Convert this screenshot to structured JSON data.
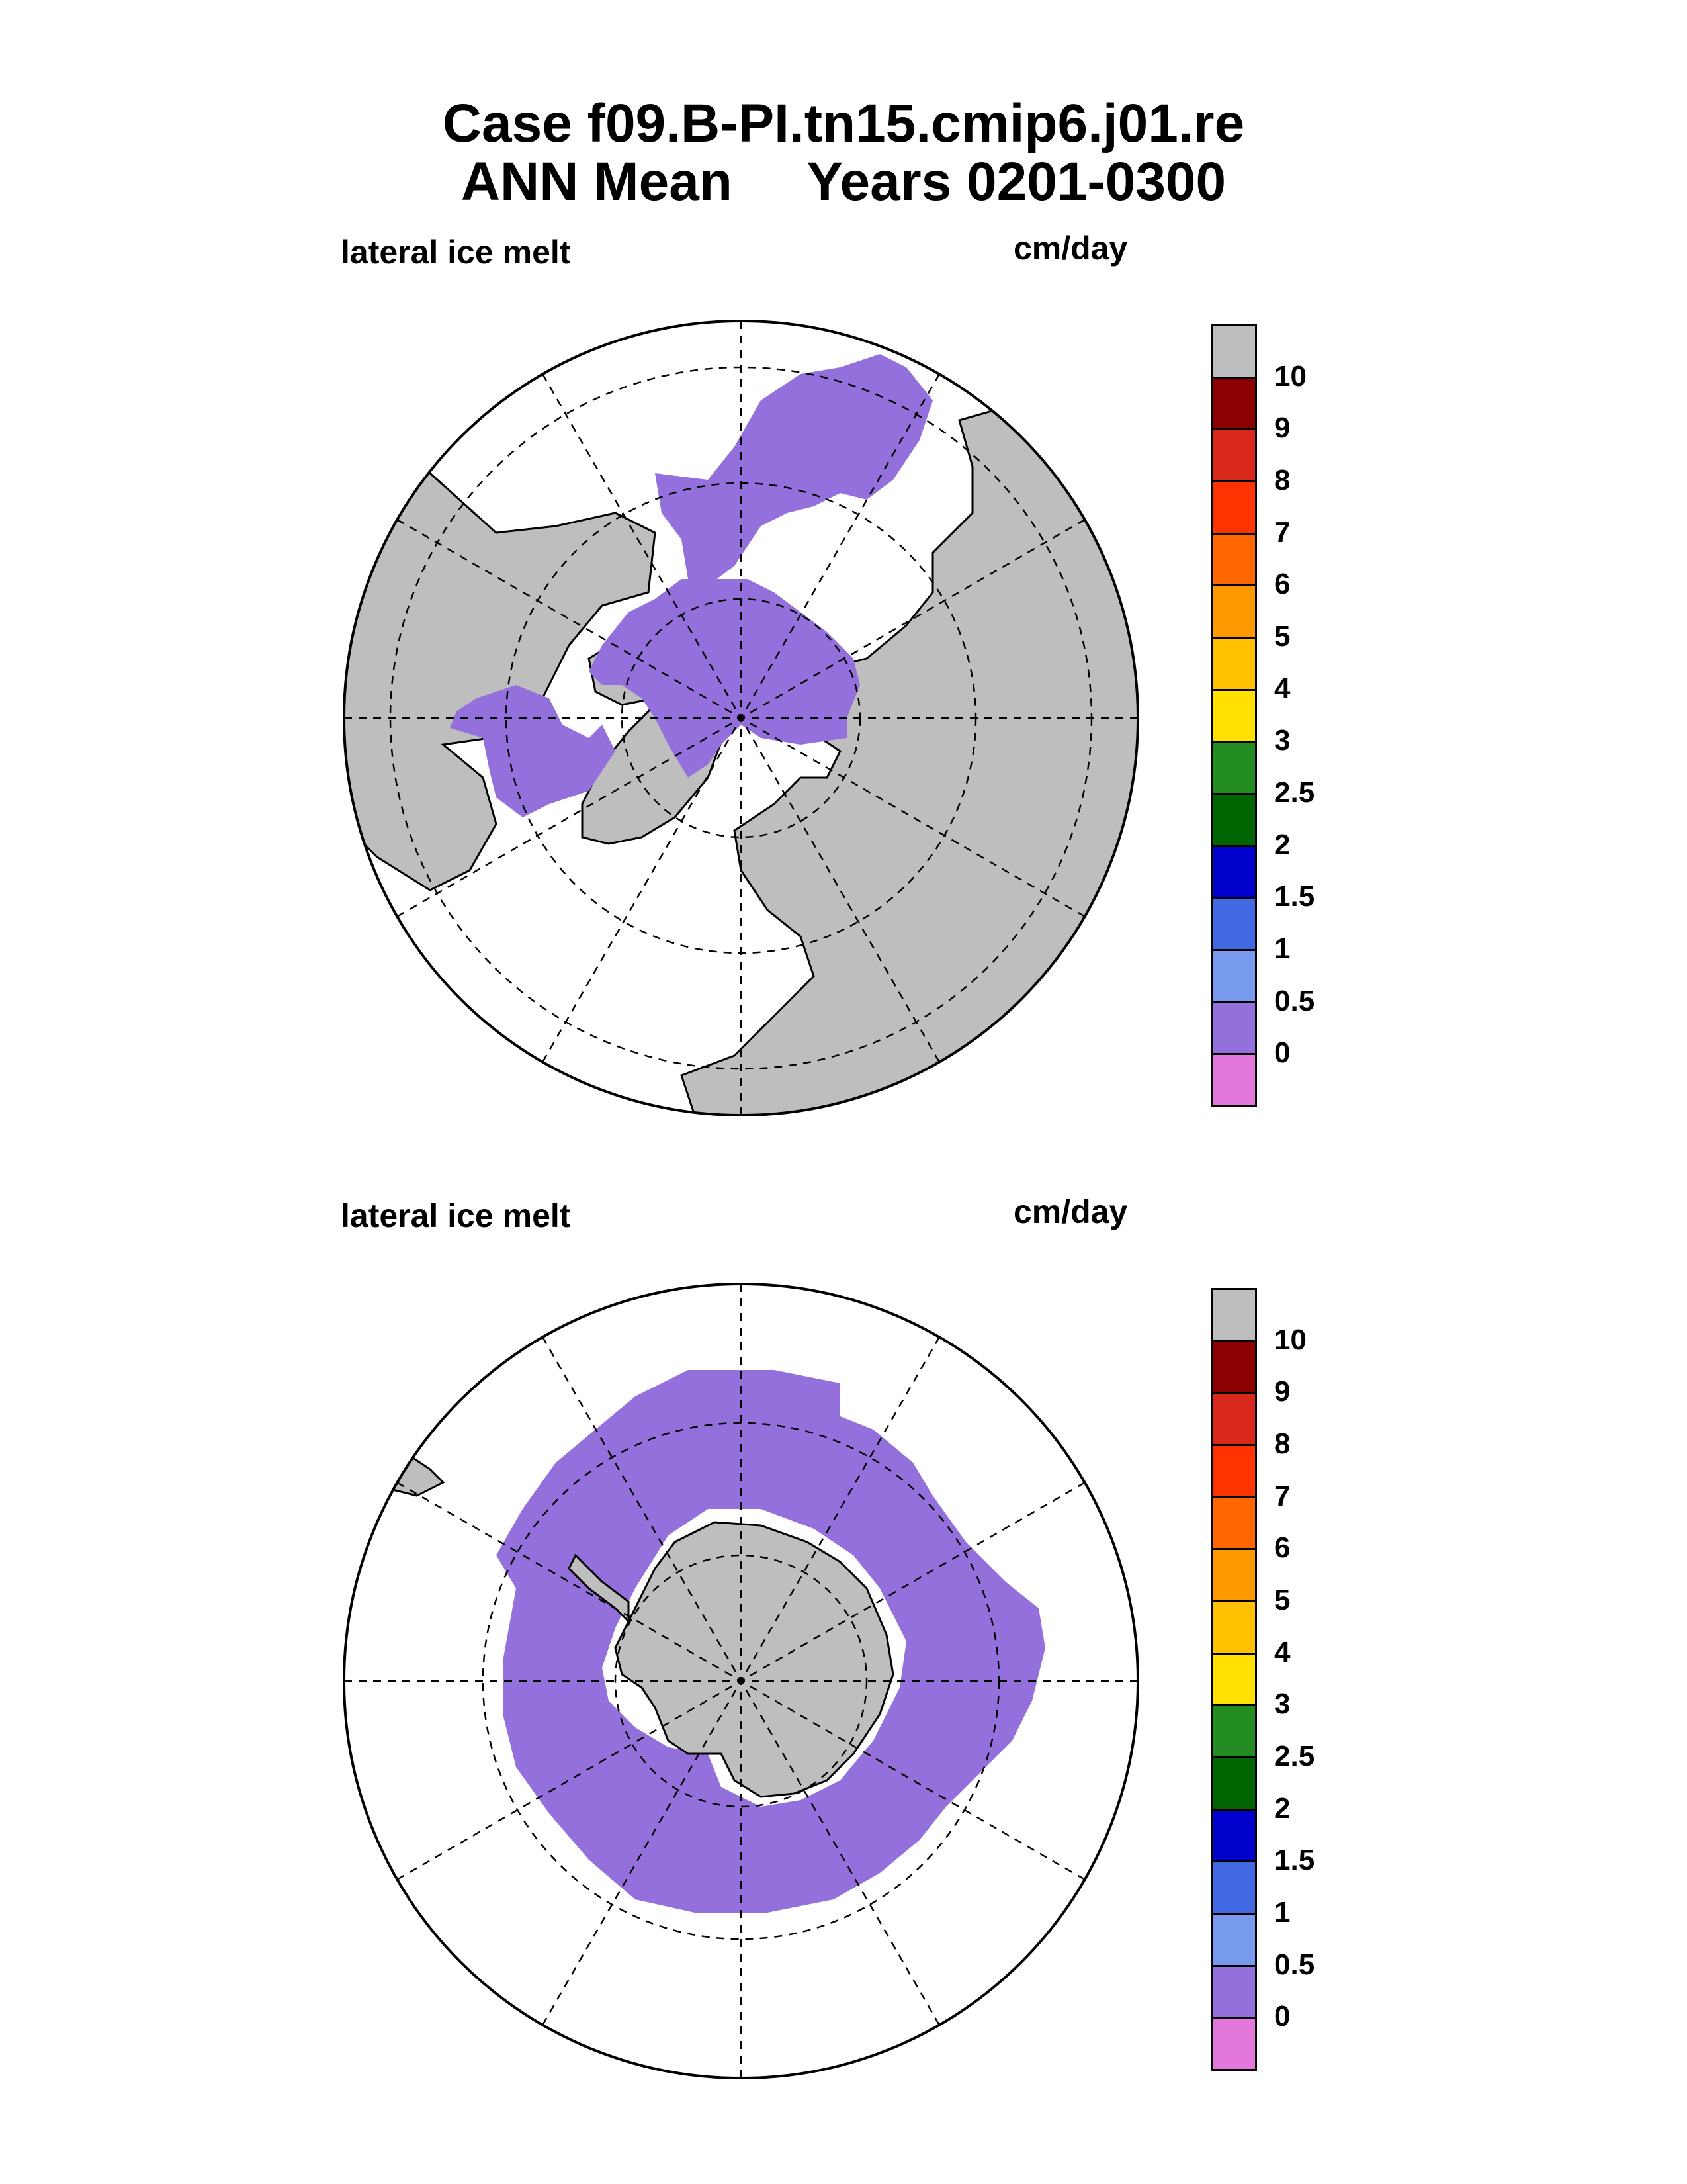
{
  "header": {
    "title_line1": "Case f09.B-PI.tn15.cmip6.j01.re",
    "title_line2": "ANN Mean     Years 0201-0300"
  },
  "panels": [
    {
      "id": "nh",
      "left_label": "lateral ice melt",
      "right_label": "cm/day",
      "hemisphere": "north"
    },
    {
      "id": "sh",
      "left_label": "lateral ice melt",
      "right_label": "cm/day",
      "hemisphere": "south"
    }
  ],
  "colorbar": {
    "colors": [
      "#bebebe",
      "#8b0000",
      "#d8281c",
      "#ff3300",
      "#ff6600",
      "#ff9900",
      "#ffc000",
      "#ffe000",
      "#228b22",
      "#006400",
      "#0000cd",
      "#4169e1",
      "#7799ee",
      "#9370db",
      "#e377dc"
    ],
    "ticks": [
      "10",
      "9",
      "8",
      "7",
      "6",
      "5",
      "4",
      "3",
      "2.5",
      "2",
      "1.5",
      "1",
      "0.5",
      "0"
    ]
  },
  "map_colors": {
    "land": "#bebebe",
    "ice_melt": "#9370db",
    "ocean": "#ffffff"
  }
}
